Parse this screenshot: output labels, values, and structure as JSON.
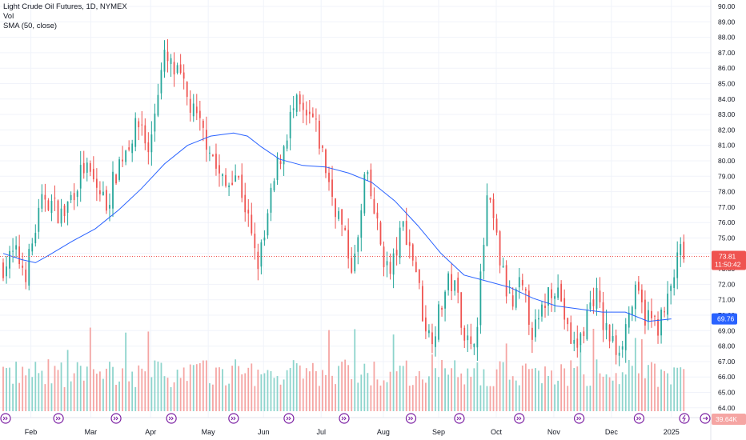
{
  "legend": {
    "title": "Light Crude Oil Futures, 1D, NYMEX",
    "vol": "Vol",
    "sma": "SMA (50, close)"
  },
  "colors": {
    "up": "#26a69a",
    "down": "#ef5350",
    "vol_up": "#8dd4cc",
    "vol_down": "#f5a5a3",
    "sma": "#2962ff",
    "price_line": "#ef5350",
    "text": "#131722",
    "grid": "#f0f3fa"
  },
  "icons": [
    "event-icon",
    "settings-arrow-icon",
    "flash-icon"
  ],
  "badges": {
    "price": "73.81",
    "countdown": "11:50:42",
    "sma_value": "69.76",
    "volume": "39.64K"
  },
  "chart_data": {
    "type": "candlestick",
    "title": "Light Crude Oil Futures, 1D, NYMEX",
    "y_axis": {
      "ticks": [
        "64.00",
        "65.00",
        "66.00",
        "67.00",
        "68.00",
        "69.00",
        "70.00",
        "71.00",
        "72.00",
        "73.00",
        "74.00",
        "75.00",
        "76.00",
        "77.00",
        "78.00",
        "79.00",
        "80.00",
        "81.00",
        "82.00",
        "83.00",
        "84.00",
        "85.00",
        "86.00",
        "87.00",
        "88.00",
        "89.00",
        "90.00"
      ],
      "range": [
        63.6,
        90.3
      ]
    },
    "x_axis": {
      "months": [
        "Feb",
        "Mar",
        "Apr",
        "May",
        "Jun",
        "Jul",
        "Aug",
        "Sep",
        "Oct",
        "Nov",
        "Dec",
        "2025"
      ]
    },
    "last_price": 73.81,
    "sma_last": 69.76,
    "close_path": [
      [
        0,
        73.2
      ],
      [
        5,
        74.0
      ],
      [
        10,
        72.8
      ],
      [
        14,
        75.6
      ],
      [
        18,
        77.8
      ],
      [
        22,
        77.0
      ],
      [
        26,
        76.4
      ],
      [
        30,
        77.9
      ],
      [
        35,
        79.6
      ],
      [
        40,
        78.4
      ],
      [
        45,
        77.2
      ],
      [
        50,
        79.8
      ],
      [
        55,
        81.4
      ],
      [
        60,
        82.6
      ],
      [
        63,
        80.3
      ],
      [
        67,
        84.6
      ],
      [
        70,
        86.6
      ],
      [
        73,
        86.0
      ],
      [
        77,
        85.2
      ],
      [
        80,
        83.9
      ],
      [
        84,
        82.6
      ],
      [
        86,
        82.0
      ],
      [
        90,
        80.9
      ],
      [
        93,
        79.2
      ],
      [
        97,
        78.2
      ],
      [
        100,
        79.5
      ],
      [
        103,
        78.4
      ],
      [
        106,
        76.4
      ],
      [
        110,
        73.2
      ],
      [
        113,
        74.6
      ],
      [
        116,
        77.4
      ],
      [
        119,
        79.6
      ],
      [
        122,
        81.2
      ],
      [
        125,
        83.0
      ],
      [
        128,
        83.6
      ],
      [
        131,
        82.5
      ],
      [
        134,
        82.8
      ],
      [
        137,
        81.4
      ],
      [
        140,
        79.5
      ],
      [
        143,
        77.6
      ],
      [
        146,
        76.3
      ],
      [
        149,
        74.4
      ],
      [
        152,
        73.0
      ],
      [
        155,
        75.8
      ],
      [
        157,
        79.2
      ],
      [
        160,
        77.4
      ],
      [
        163,
        75.2
      ],
      [
        165,
        73.8
      ],
      [
        168,
        72.6
      ],
      [
        171,
        74.4
      ],
      [
        174,
        76.0
      ],
      [
        176,
        74.6
      ],
      [
        179,
        73.2
      ],
      [
        182,
        70.2
      ],
      [
        185,
        68.6
      ],
      [
        188,
        69.4
      ],
      [
        191,
        71.2
      ],
      [
        194,
        72.3
      ],
      [
        197,
        71.4
      ],
      [
        200,
        69.0
      ],
      [
        203,
        67.6
      ],
      [
        206,
        70.2
      ],
      [
        208,
        73.4
      ],
      [
        210,
        77.4
      ],
      [
        213,
        75.9
      ],
      [
        215,
        74.0
      ],
      [
        218,
        71.8
      ],
      [
        221,
        70.4
      ],
      [
        224,
        71.8
      ],
      [
        227,
        70.8
      ],
      [
        230,
        68.8
      ],
      [
        233,
        69.6
      ],
      [
        236,
        71.4
      ],
      [
        239,
        72.1
      ],
      [
        242,
        71.2
      ],
      [
        245,
        68.8
      ],
      [
        248,
        67.9
      ],
      [
        251,
        68.6
      ],
      [
        254,
        70.4
      ],
      [
        257,
        71.6
      ],
      [
        260,
        69.6
      ],
      [
        263,
        68.6
      ],
      [
        266,
        67.8
      ],
      [
        269,
        68.6
      ],
      [
        272,
        70.4
      ],
      [
        275,
        71.4
      ],
      [
        278,
        70.1
      ],
      [
        281,
        69.7
      ],
      [
        284,
        69.4
      ],
      [
        287,
        70.1
      ],
      [
        290,
        71.8
      ],
      [
        292,
        73.2
      ],
      [
        294,
        74.0
      ],
      [
        296,
        73.81
      ]
    ],
    "sma_path": [
      [
        0,
        74.0
      ],
      [
        8,
        73.6
      ],
      [
        14,
        73.4
      ],
      [
        20,
        73.9
      ],
      [
        30,
        74.8
      ],
      [
        40,
        75.6
      ],
      [
        50,
        76.8
      ],
      [
        60,
        78.2
      ],
      [
        70,
        79.8
      ],
      [
        80,
        81.0
      ],
      [
        90,
        81.6
      ],
      [
        100,
        81.8
      ],
      [
        106,
        81.6
      ],
      [
        112,
        80.9
      ],
      [
        120,
        80.1
      ],
      [
        130,
        79.7
      ],
      [
        140,
        79.6
      ],
      [
        150,
        79.2
      ],
      [
        160,
        78.6
      ],
      [
        170,
        77.4
      ],
      [
        180,
        75.8
      ],
      [
        190,
        74.0
      ],
      [
        200,
        72.6
      ],
      [
        210,
        72.2
      ],
      [
        220,
        71.8
      ],
      [
        230,
        71.1
      ],
      [
        240,
        70.6
      ],
      [
        250,
        70.4
      ],
      [
        260,
        70.2
      ],
      [
        270,
        70.2
      ],
      [
        280,
        69.6
      ],
      [
        290,
        69.76
      ]
    ]
  }
}
